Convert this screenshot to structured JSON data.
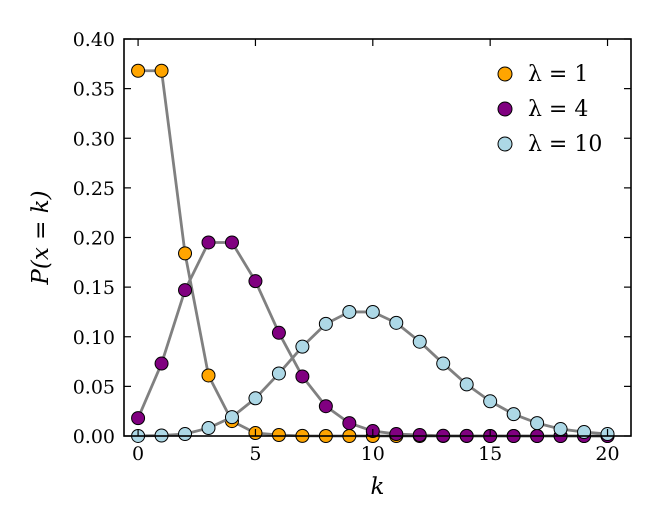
{
  "chart_data": {
    "type": "line",
    "xlabel": "k",
    "ylabel": "P(x = k)",
    "xlim": [
      -0.6,
      21.0
    ],
    "ylim": [
      0.0,
      0.4
    ],
    "xticks": [
      0,
      5,
      10,
      15,
      20
    ],
    "yticks": [
      0.0,
      0.05,
      0.1,
      0.15,
      0.2,
      0.25,
      0.3,
      0.35,
      0.4
    ],
    "ytick_labels": [
      "0.00",
      "0.05",
      "0.10",
      "0.15",
      "0.20",
      "0.25",
      "0.30",
      "0.35",
      "0.40"
    ],
    "xtick_labels": [
      "0",
      "5",
      "10",
      "15",
      "20"
    ],
    "grid": false,
    "legend_position": "top-right",
    "x": [
      0,
      1,
      2,
      3,
      4,
      5,
      6,
      7,
      8,
      9,
      10,
      11,
      12,
      13,
      14,
      15,
      16,
      17,
      18,
      19,
      20
    ],
    "series": [
      {
        "name": "λ = 1",
        "color": "#FFA500",
        "values": [
          0.368,
          0.368,
          0.184,
          0.061,
          0.015,
          0.003,
          0.001,
          0.0001,
          0.0,
          0.0,
          0.0,
          0.0,
          0.0,
          0.0,
          0.0,
          0.0,
          0.0,
          0.0,
          0.0,
          0.0,
          0.0
        ]
      },
      {
        "name": "λ = 4",
        "color": "#800080",
        "values": [
          0.018,
          0.073,
          0.147,
          0.195,
          0.195,
          0.156,
          0.104,
          0.06,
          0.03,
          0.013,
          0.005,
          0.002,
          0.001,
          0.0002,
          0.0001,
          0.0,
          0.0,
          0.0,
          0.0,
          0.0,
          0.0
        ]
      },
      {
        "name": "λ = 10",
        "color": "#ADD8E6",
        "values": [
          5e-05,
          0.0005,
          0.002,
          0.008,
          0.019,
          0.038,
          0.063,
          0.09,
          0.113,
          0.125,
          0.125,
          0.114,
          0.095,
          0.073,
          0.052,
          0.035,
          0.022,
          0.013,
          0.007,
          0.004,
          0.002
        ]
      }
    ]
  }
}
